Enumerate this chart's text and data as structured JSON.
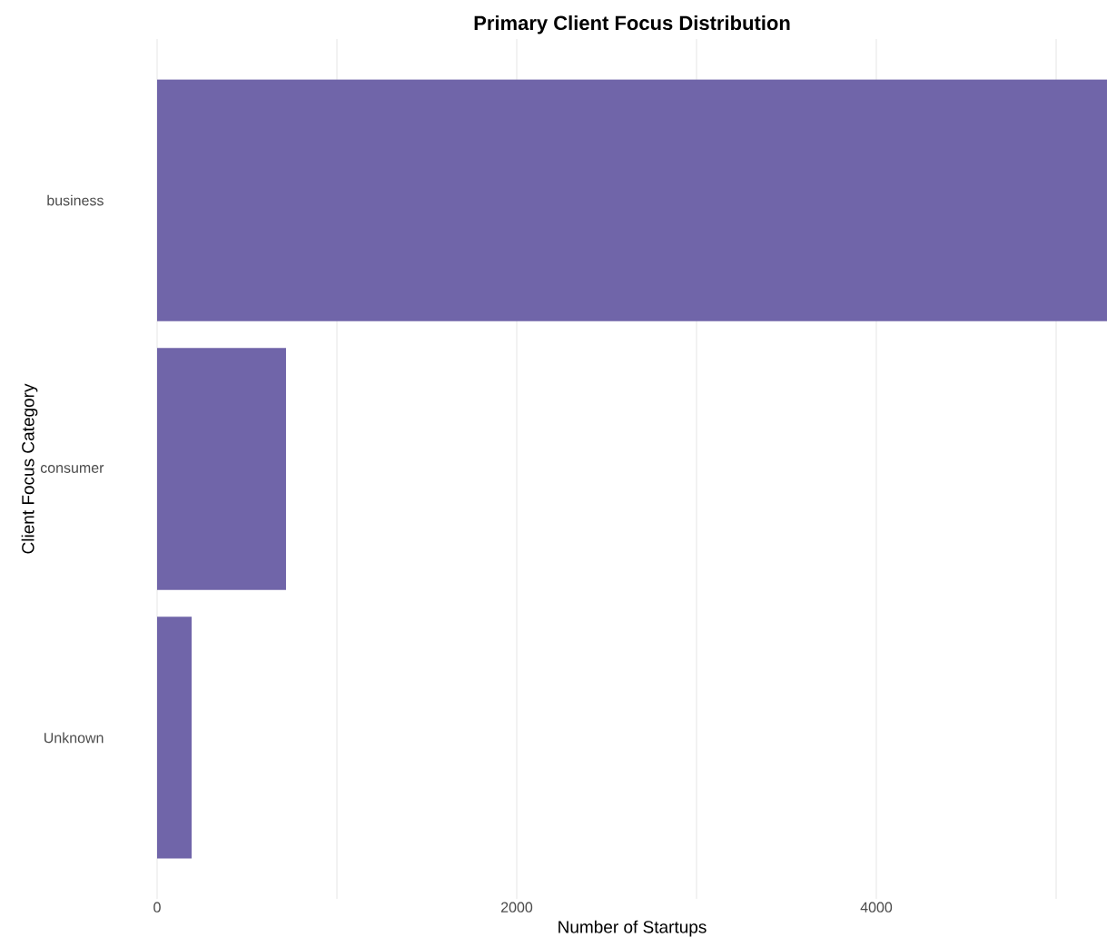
{
  "chart_data": {
    "type": "bar",
    "orientation": "horizontal",
    "title": "Primary Client Focus Distribution",
    "xlabel": "Number of Startups",
    "ylabel": "Client Focus Category",
    "categories": [
      "business",
      "consumer",
      "Unknown"
    ],
    "values": [
      5283,
      717,
      192
    ],
    "color": "#7065a9",
    "xlim": [
      0,
      5283
    ],
    "xticks": [
      0,
      {
        "value": 1000,
        "label": null
      },
      2000,
      {
        "value": 3000,
        "label": null
      },
      4000,
      {
        "value": 5000,
        "label": null
      }
    ],
    "grid": "x"
  }
}
